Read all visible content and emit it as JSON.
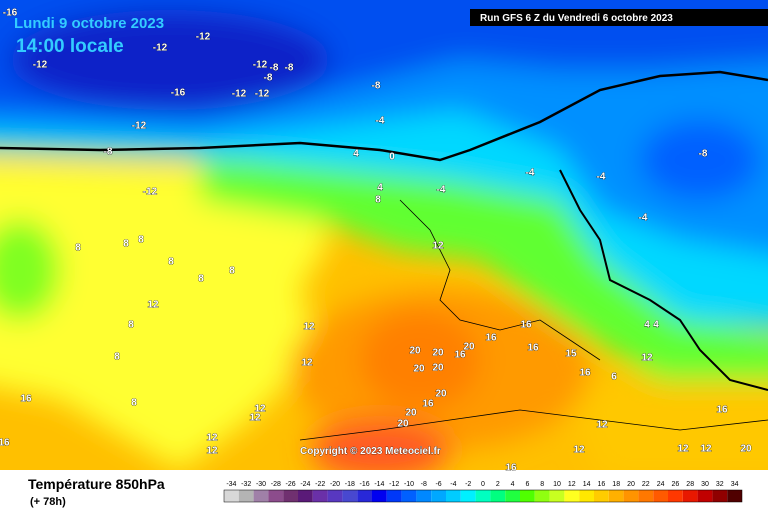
{
  "header": {
    "date": "Lundi 9 octobre 2023",
    "time": "14:00 locale",
    "run": "Run GFS 6 Z du Vendredi 6 octobre 2023"
  },
  "copyright": "Copyright © 2023 Meteociel.fr",
  "footer": {
    "title": "Température 850hPa",
    "lead": "(+ 78h)"
  },
  "colorbar": {
    "labels": [
      -34,
      -32,
      -30,
      -28,
      -26,
      -24,
      -22,
      -20,
      -18,
      -16,
      -14,
      -12,
      -10,
      -8,
      -6,
      -4,
      -2,
      0,
      2,
      4,
      6,
      8,
      10,
      12,
      14,
      16,
      18,
      20,
      22,
      24,
      26,
      28,
      30,
      32,
      34
    ],
    "colors": [
      "#d8d8d8",
      "#b4b4b4",
      "#a080a8",
      "#8c4c8c",
      "#703070",
      "#5a1a78",
      "#6a30a8",
      "#5838c0",
      "#4848d0",
      "#2828d8",
      "#0000f0",
      "#0038f8",
      "#0060ff",
      "#0088ff",
      "#00a8ff",
      "#00ccff",
      "#00f0ff",
      "#00ffc0",
      "#00ff80",
      "#20ff40",
      "#50ff00",
      "#90ff10",
      "#c8ff20",
      "#ffff20",
      "#ffe800",
      "#ffcc00",
      "#ffb000",
      "#ff9400",
      "#ff7800",
      "#ff5a00",
      "#ff3800",
      "#e81800",
      "#c00000",
      "#900000",
      "#500000"
    ]
  },
  "isotherm_labels": [
    -16,
    -12,
    -12,
    -12,
    -12,
    -8,
    -8,
    -8,
    -16,
    -12,
    -12,
    -8,
    -4,
    -12,
    -8,
    4,
    0,
    -12,
    4,
    8,
    -4,
    -4,
    -4,
    -4,
    -8,
    8,
    8,
    8,
    8,
    8,
    8,
    12,
    12,
    8,
    12,
    8,
    16,
    16,
    20,
    20,
    20,
    16,
    20,
    20,
    16,
    15,
    4,
    4,
    12,
    12,
    6,
    16,
    20,
    16,
    8,
    16,
    12,
    12,
    20,
    20,
    16,
    16,
    12,
    12,
    12,
    20,
    12,
    12,
    12,
    16
  ]
}
